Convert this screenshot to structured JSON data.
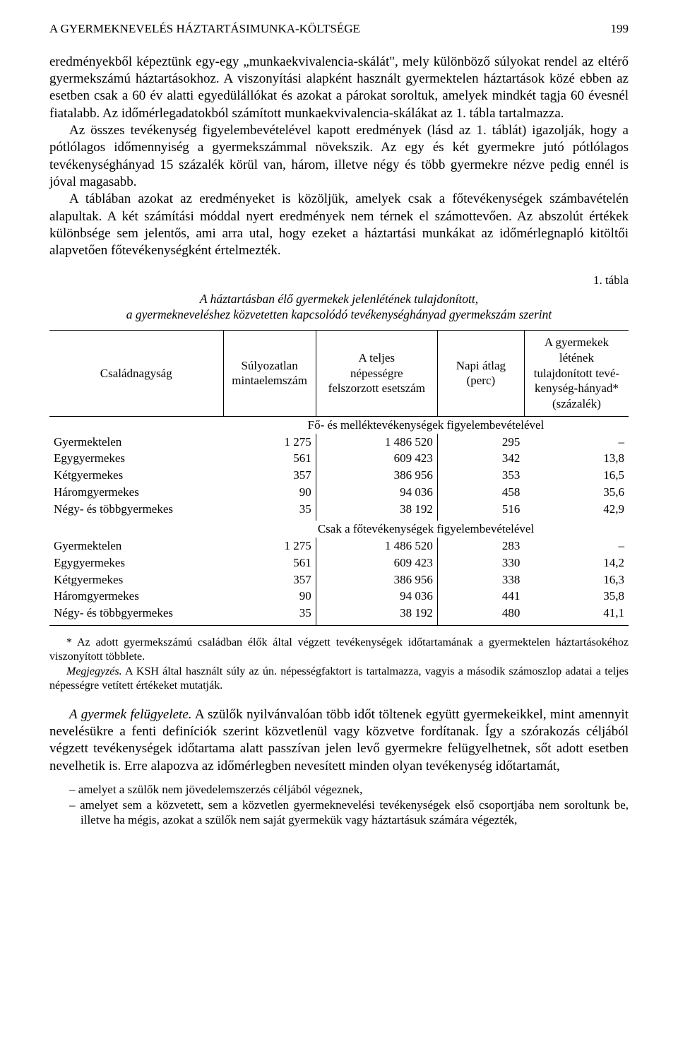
{
  "running_head": {
    "title": "A GYERMEKNEVELÉS HÁZTARTÁSIMUNKA-KÖLTSÉGE",
    "page_number": "199"
  },
  "paragraphs": {
    "p1": "eredményekből képeztünk egy-egy „munkaekvivalencia-skálát\", mely különböző súlyokat rendel az eltérő gyermekszámú háztartásokhoz. A viszonyítási alapként használt gyermektelen háztartások közé ebben az esetben csak a 60 év alatti egyedülállókat és azokat a párokat soroltuk, amelyek mindkét tagja 60 évesnél fiatalabb. Az időmérlegadatokból számított munkaekvivalencia-skálákat az 1. tábla tartalmazza.",
    "p2": "Az összes tevékenység figyelembevételével kapott eredmények (lásd az 1. táblát) igazolják, hogy a pótlólagos időmennyiség a gyermekszámmal növekszik. Az egy és két gyermekre jutó pótlólagos tevékenységhányad 15 százalék körül van, három, illetve négy és több gyermekre nézve pedig ennél is jóval magasabb.",
    "p3": "A táblában azokat az eredményeket is közöljük, amelyek csak a főtevékenységek számbavételén alapultak. A két számítási móddal nyert eredmények nem térnek el számottevően. Az abszolút értékek különbsége sem jelentős, ami arra utal, hogy ezeket a háztartási munkákat az időmérlegnapló kitöltői alapvetően főtevékenységként értelmezték."
  },
  "table": {
    "label": "1. tábla",
    "caption_line1": "A háztartásban élő gyermekek jelenlétének tulajdonított,",
    "caption_line2": "a gyermekneveléshez közvetetten kapcsolódó tevékenységhányad gyermekszám szerint",
    "headers": {
      "c1": "Családnagyság",
      "c2": "Súlyozatlan\nmintaelemszám",
      "c3": "A teljes\nnépességre\nfelszorzott esetszám",
      "c4": "Napi átlag\n(perc)",
      "c5": "A gyermekek létének\ntulajdonított tevé-\nkenység-hányad*\n(százalék)"
    },
    "section1_title": "Fő- és melléktevékenységek figyelembevételével",
    "section1_rows": [
      {
        "label": "Gyermektelen",
        "n": "1 275",
        "pop": "1 486 520",
        "avg": "295",
        "pct": "–"
      },
      {
        "label": "Egygyermekes",
        "n": "561",
        "pop": "609 423",
        "avg": "342",
        "pct": "13,8"
      },
      {
        "label": "Kétgyermekes",
        "n": "357",
        "pop": "386 956",
        "avg": "353",
        "pct": "16,5"
      },
      {
        "label": "Háromgyermekes",
        "n": "90",
        "pop": "94 036",
        "avg": "458",
        "pct": "35,6"
      },
      {
        "label": "Négy- és többgyermekes",
        "n": "35",
        "pop": "38 192",
        "avg": "516",
        "pct": "42,9"
      }
    ],
    "section2_title": "Csak a főtevékenységek figyelembevételével",
    "section2_rows": [
      {
        "label": "Gyermektelen",
        "n": "1 275",
        "pop": "1 486 520",
        "avg": "283",
        "pct": "–"
      },
      {
        "label": "Egygyermekes",
        "n": "561",
        "pop": "609 423",
        "avg": "330",
        "pct": "14,2"
      },
      {
        "label": "Kétgyermekes",
        "n": "357",
        "pop": "386 956",
        "avg": "338",
        "pct": "16,3"
      },
      {
        "label": "Háromgyermekes",
        "n": "90",
        "pop": "94 036",
        "avg": "441",
        "pct": "35,8"
      },
      {
        "label": "Négy- és többgyermekes",
        "n": "35",
        "pop": "38 192",
        "avg": "480",
        "pct": "41,1"
      }
    ],
    "col_widths": [
      "30%",
      "16%",
      "21%",
      "15%",
      "18%"
    ]
  },
  "footnotes": {
    "star": "* Az adott gyermekszámú családban élők által végzett tevékenységek időtartamának a gyermektelen háztartásokéhoz viszonyított többlete.",
    "note_label": "Megjegyzés.",
    "note_text": " A KSH által használt súly az ún. népességfaktort is tartalmazza, vagyis a második számoszlop adatai a teljes népességre vetített értékeket mutatják."
  },
  "after_table": {
    "subhead": "A gyermek felügyelete.",
    "p4_rest": " A szülők nyilvánvalóan több időt töltenek együtt gyermekeikkel, mint amennyit nevelésükre a fenti definíciók szerint közvetlenül vagy közvetve fordítanak. Így a szórakozás céljából végzett tevékenységek időtartama alatt passzívan jelen levő gyermekre felügyelhetnek, sőt adott esetben nevelhetik is. Erre alapozva az időmérlegben nevesített minden olyan tevékenység időtartamát,",
    "bullets": [
      "amelyet a szülők nem jövedelemszerzés céljából végeznek,",
      "amelyet sem a közvetett, sem a közvetlen gyermeknevelési tevékenységek első csoportjába nem soroltunk be, illetve ha mégis, azokat a szülők nem saját gyermekük vagy háztartásuk számára végezték,"
    ]
  }
}
